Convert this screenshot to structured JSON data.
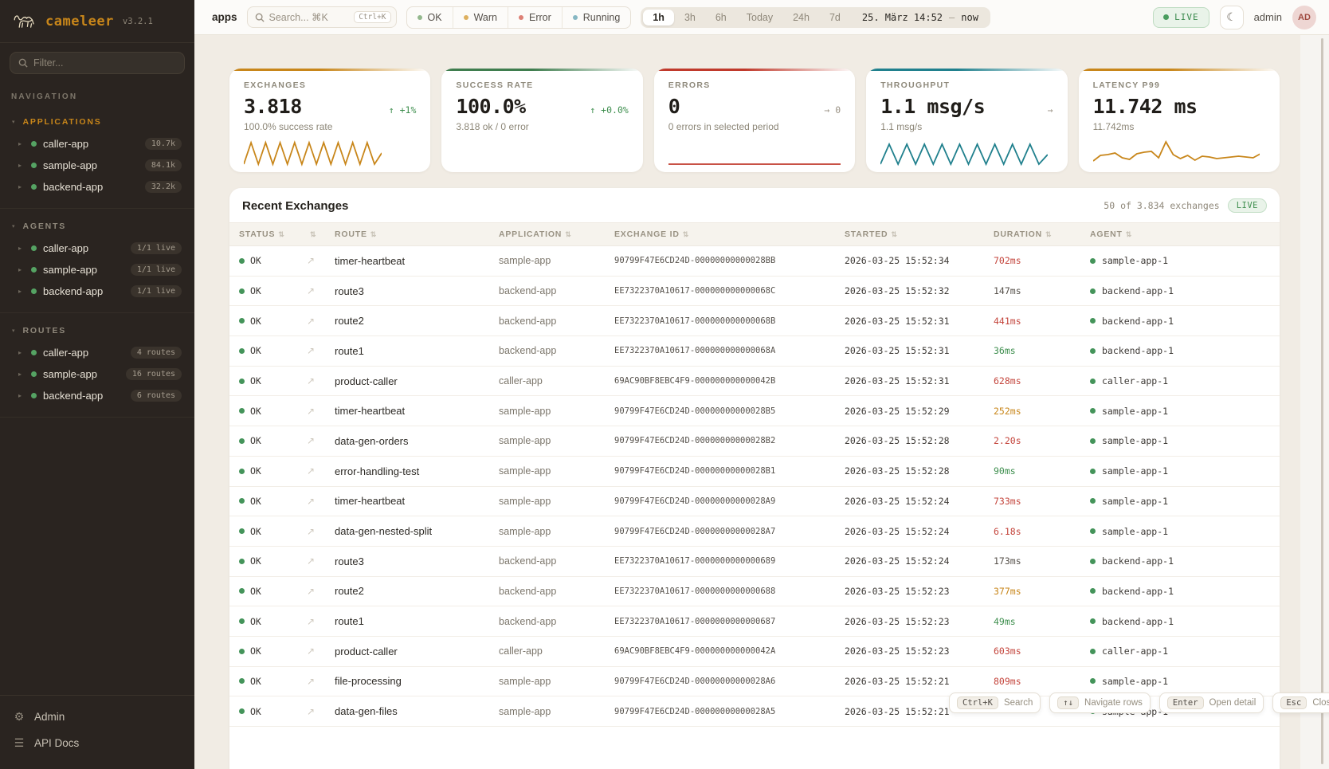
{
  "sidebar": {
    "logo": "cameleer",
    "version": "v3.2.1",
    "filter_placeholder": "Filter...",
    "nav_label": "NAVIGATION",
    "sections": [
      {
        "label": "APPLICATIONS",
        "color": "#c8861a",
        "items": [
          {
            "name": "caller-app",
            "badge": "10.7k"
          },
          {
            "name": "sample-app",
            "badge": "84.1k"
          },
          {
            "name": "backend-app",
            "badge": "32.2k"
          }
        ]
      },
      {
        "label": "AGENTS",
        "color": "#8f887b",
        "items": [
          {
            "name": "caller-app",
            "badge": "1/1 live"
          },
          {
            "name": "sample-app",
            "badge": "1/1 live"
          },
          {
            "name": "backend-app",
            "badge": "1/1 live"
          }
        ]
      },
      {
        "label": "ROUTES",
        "color": "#8f887b",
        "items": [
          {
            "name": "caller-app",
            "badge": "4 routes"
          },
          {
            "name": "sample-app",
            "badge": "16 routes"
          },
          {
            "name": "backend-app",
            "badge": "6 routes"
          }
        ]
      }
    ],
    "footer": [
      {
        "label": "Admin",
        "icon": "⚙"
      },
      {
        "label": "API Docs",
        "icon": "☰"
      }
    ]
  },
  "topbar": {
    "breadcrumb": "apps",
    "search_placeholder": "Search... ⌘K",
    "search_kbd": "Ctrl+K",
    "filters": [
      {
        "label": "OK",
        "color": "#93b88d"
      },
      {
        "label": "Warn",
        "color": "#ddb05f"
      },
      {
        "label": "Error",
        "color": "#dd8075"
      },
      {
        "label": "Running",
        "color": "#86b7c3"
      }
    ],
    "ranges": [
      {
        "label": "1h"
      },
      {
        "label": "3h"
      },
      {
        "label": "6h"
      },
      {
        "label": "Today"
      },
      {
        "label": "24h"
      },
      {
        "label": "7d"
      }
    ],
    "active_range": "1h",
    "range_from": "25. März 14:52",
    "range_sep": "—",
    "range_to": "now",
    "live_label": "LIVE",
    "user": "admin",
    "avatar": "AD"
  },
  "kpis": [
    {
      "label": "EXCHANGES",
      "value": "3.818",
      "delta": "↑ +1%",
      "delta_color": "#3f8f4f",
      "sub": "100.0% success rate",
      "accent": "#c8861a",
      "spark_color": "#c8861a",
      "spark_width_pct": 80,
      "spark_values": [
        3,
        30,
        3,
        30,
        3,
        30,
        3,
        30,
        3,
        30,
        3,
        30,
        3,
        30,
        3,
        30,
        3,
        30,
        3,
        17
      ]
    },
    {
      "label": "SUCCESS RATE",
      "value": "100.0%",
      "delta": "↑ +0.0%",
      "delta_color": "#3f8f4f",
      "sub": "3.818 ok / 0 error",
      "accent": "#3f7d4e",
      "spark_color": "#3f7d4e",
      "spark_width_pct": 100,
      "spark_values": []
    },
    {
      "label": "ERRORS",
      "value": "0",
      "delta": "→ 0",
      "delta_color": "#9a9284",
      "sub": "0 errors in selected period",
      "accent": "#c0392b",
      "spark_color": "#c0392b",
      "spark_width_pct": 100,
      "spark_values": [
        3,
        3
      ]
    },
    {
      "label": "THROUGHPUT",
      "value": "1.1 msg/s",
      "delta": "→",
      "delta_color": "#9a9284",
      "sub": "1.1 msg/s",
      "accent": "#20808d",
      "spark_color": "#20808d",
      "spark_width_pct": 97,
      "spark_values": [
        3,
        28,
        3,
        28,
        3,
        28,
        3,
        28,
        3,
        28,
        3,
        28,
        3,
        28,
        3,
        28,
        3,
        28,
        3,
        15
      ]
    },
    {
      "label": "LATENCY P99",
      "value": "11.742 ms",
      "delta": "",
      "delta_color": "#9a9284",
      "sub": "11.742ms",
      "accent": "#c8861a",
      "spark_color": "#c8861a",
      "spark_width_pct": 97,
      "spark_values": [
        7,
        14,
        15,
        17,
        11,
        9,
        16,
        18,
        19,
        11,
        31,
        15,
        10,
        14,
        8,
        13,
        12,
        10,
        11,
        12,
        13,
        12,
        11,
        16
      ]
    }
  ],
  "table": {
    "title": "Recent Exchanges",
    "meta": "50 of 3.834 exchanges",
    "live_badge": "LIVE",
    "sort_icon": "⇅",
    "row_arrow": "↗",
    "status_ok": "OK",
    "columns": [
      {
        "label": "STATUS"
      },
      {
        "label": ""
      },
      {
        "label": "ROUTE"
      },
      {
        "label": "APPLICATION"
      },
      {
        "label": "EXCHANGE ID"
      },
      {
        "label": "STARTED"
      },
      {
        "label": "DURATION"
      },
      {
        "label": "AGENT"
      }
    ],
    "rows": [
      {
        "status": "OK",
        "route": "timer-heartbeat",
        "app": "sample-app",
        "id": "90799F47E6CD24D-00000000000028BB",
        "started": "2026-03-25 15:52:34",
        "duration": "702ms",
        "dur_color": "#c4453c",
        "agent": "sample-app-1"
      },
      {
        "status": "OK",
        "route": "route3",
        "app": "backend-app",
        "id": "EE7322370A10617-000000000000068C",
        "started": "2026-03-25 15:52:32",
        "duration": "147ms",
        "dur_color": "#55504a",
        "agent": "backend-app-1"
      },
      {
        "status": "OK",
        "route": "route2",
        "app": "backend-app",
        "id": "EE7322370A10617-000000000000068B",
        "started": "2026-03-25 15:52:31",
        "duration": "441ms",
        "dur_color": "#c4453c",
        "agent": "backend-app-1"
      },
      {
        "status": "OK",
        "route": "route1",
        "app": "backend-app",
        "id": "EE7322370A10617-000000000000068A",
        "started": "2026-03-25 15:52:31",
        "duration": "36ms",
        "dur_color": "#3f8f4f",
        "agent": "backend-app-1"
      },
      {
        "status": "OK",
        "route": "product-caller",
        "app": "caller-app",
        "id": "69AC90BF8EBC4F9-000000000000042B",
        "started": "2026-03-25 15:52:31",
        "duration": "628ms",
        "dur_color": "#c4453c",
        "agent": "caller-app-1"
      },
      {
        "status": "OK",
        "route": "timer-heartbeat",
        "app": "sample-app",
        "id": "90799F47E6CD24D-00000000000028B5",
        "started": "2026-03-25 15:52:29",
        "duration": "252ms",
        "dur_color": "#c8861a",
        "agent": "sample-app-1"
      },
      {
        "status": "OK",
        "route": "data-gen-orders",
        "app": "sample-app",
        "id": "90799F47E6CD24D-00000000000028B2",
        "started": "2026-03-25 15:52:28",
        "duration": "2.20s",
        "dur_color": "#c4453c",
        "agent": "sample-app-1"
      },
      {
        "status": "OK",
        "route": "error-handling-test",
        "app": "sample-app",
        "id": "90799F47E6CD24D-00000000000028B1",
        "started": "2026-03-25 15:52:28",
        "duration": "90ms",
        "dur_color": "#3f8f4f",
        "agent": "sample-app-1"
      },
      {
        "status": "OK",
        "route": "timer-heartbeat",
        "app": "sample-app",
        "id": "90799F47E6CD24D-00000000000028A9",
        "started": "2026-03-25 15:52:24",
        "duration": "733ms",
        "dur_color": "#c4453c",
        "agent": "sample-app-1"
      },
      {
        "status": "OK",
        "route": "data-gen-nested-split",
        "app": "sample-app",
        "id": "90799F47E6CD24D-00000000000028A7",
        "started": "2026-03-25 15:52:24",
        "duration": "6.18s",
        "dur_color": "#c4453c",
        "agent": "sample-app-1"
      },
      {
        "status": "OK",
        "route": "route3",
        "app": "backend-app",
        "id": "EE7322370A10617-0000000000000689",
        "started": "2026-03-25 15:52:24",
        "duration": "173ms",
        "dur_color": "#55504a",
        "agent": "backend-app-1"
      },
      {
        "status": "OK",
        "route": "route2",
        "app": "backend-app",
        "id": "EE7322370A10617-0000000000000688",
        "started": "2026-03-25 15:52:23",
        "duration": "377ms",
        "dur_color": "#c8861a",
        "agent": "backend-app-1"
      },
      {
        "status": "OK",
        "route": "route1",
        "app": "backend-app",
        "id": "EE7322370A10617-0000000000000687",
        "started": "2026-03-25 15:52:23",
        "duration": "49ms",
        "dur_color": "#3f8f4f",
        "agent": "backend-app-1"
      },
      {
        "status": "OK",
        "route": "product-caller",
        "app": "caller-app",
        "id": "69AC90BF8EBC4F9-000000000000042A",
        "started": "2026-03-25 15:52:23",
        "duration": "603ms",
        "dur_color": "#c4453c",
        "agent": "caller-app-1"
      },
      {
        "status": "OK",
        "route": "file-processing",
        "app": "sample-app",
        "id": "90799F47E6CD24D-00000000000028A6",
        "started": "2026-03-25 15:52:21",
        "duration": "809ms",
        "dur_color": "#c4453c",
        "agent": "sample-app-1"
      },
      {
        "status": "OK",
        "route": "data-gen-files",
        "app": "sample-app",
        "id": "90799F47E6CD24D-00000000000028A5",
        "started": "2026-03-25 15:52:21",
        "duration": "",
        "dur_color": "#55504a",
        "agent": "sample-app-1"
      }
    ]
  },
  "hints": [
    {
      "key": "Ctrl+K",
      "label": "Search"
    },
    {
      "key": "↑↓",
      "label": "Navigate rows"
    },
    {
      "key": "Enter",
      "label": "Open detail"
    },
    {
      "key": "Esc",
      "label": "Close panel"
    }
  ]
}
